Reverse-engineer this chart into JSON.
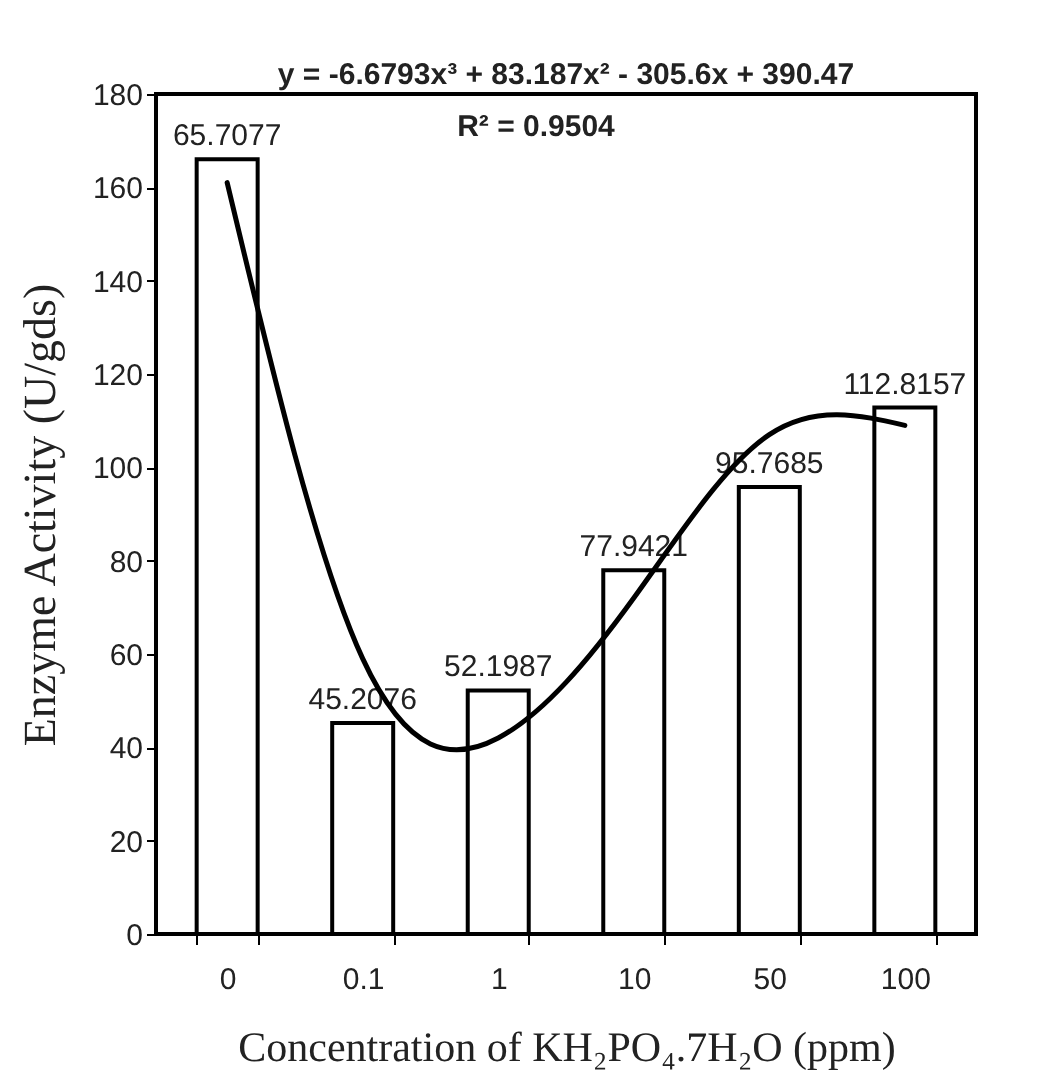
{
  "chart_data": {
    "type": "bar",
    "xlabel": "Concentration of KH₂PO₄.7H₂O (ppm)",
    "ylabel": "Enzyme Activity (U/gds)",
    "categories": [
      "0",
      "0.1",
      "1",
      "10",
      "50",
      "100"
    ],
    "series": [
      {
        "color": "#ffffff",
        "values": [
          166,
          45.2076,
          52.1987,
          77.9421,
          95.7685,
          112.8157
        ],
        "value_labels": [
          null,
          "45.2076",
          "52.1987",
          "77.9421",
          "95.7685",
          "112.8157"
        ]
      },
      {
        "type": "line",
        "color": "#000000",
        "x": [
          "0",
          "0.1",
          "1",
          "10",
          "50",
          "100"
        ],
        "values": [
          161,
          59,
          42,
          72,
          107,
          109
        ]
      }
    ],
    "ylim": [
      0,
      180
    ],
    "yticks": [
      0,
      20,
      40,
      60,
      80,
      100,
      120,
      140,
      160,
      180
    ],
    "annotations": [
      "y = -6.6793x³ + 83.187x² - 305.6x + 390.47",
      "R² = 0.9504",
      {
        "text": "65.7077",
        "x": "0",
        "y": 166
      }
    ]
  }
}
